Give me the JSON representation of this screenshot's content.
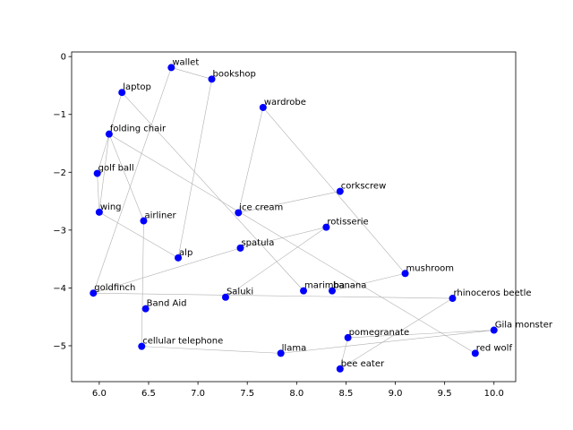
{
  "chart_data": {
    "type": "scatter",
    "title": "",
    "xlabel": "",
    "ylabel": "",
    "xlim": [
      5.72,
      10.22
    ],
    "ylim": [
      -5.62,
      0.08
    ],
    "xticks": [
      6.0,
      6.5,
      7.0,
      7.5,
      8.0,
      8.5,
      9.0,
      9.5,
      10.0
    ],
    "xtick_labels": [
      "6.0",
      "6.5",
      "7.0",
      "7.5",
      "8.0",
      "8.5",
      "9.0",
      "9.5",
      "10.0"
    ],
    "yticks": [
      0,
      -1,
      -2,
      -3,
      -4,
      -5
    ],
    "ytick_labels": [
      "0",
      "−1",
      "−2",
      "−3",
      "−4",
      "−5"
    ],
    "grid": false,
    "point_color": "#0000ff",
    "line_color": "#b0b0b0",
    "points": [
      {
        "label": "wallet",
        "x": 6.73,
        "y": -0.19
      },
      {
        "label": "bookshop",
        "x": 7.14,
        "y": -0.39
      },
      {
        "label": "laptop",
        "x": 6.23,
        "y": -0.62
      },
      {
        "label": "wardrobe",
        "x": 7.66,
        "y": -0.88
      },
      {
        "label": "folding chair",
        "x": 6.1,
        "y": -1.34
      },
      {
        "label": "golf ball",
        "x": 5.98,
        "y": -2.02
      },
      {
        "label": "corkscrew",
        "x": 8.44,
        "y": -2.33
      },
      {
        "label": "wing",
        "x": 6.0,
        "y": -2.69
      },
      {
        "label": "ice cream",
        "x": 7.41,
        "y": -2.7
      },
      {
        "label": "airliner",
        "x": 6.45,
        "y": -2.84
      },
      {
        "label": "rotisserie",
        "x": 8.3,
        "y": -2.95
      },
      {
        "label": "spatula",
        "x": 7.43,
        "y": -3.31
      },
      {
        "label": "alp",
        "x": 6.8,
        "y": -3.48
      },
      {
        "label": "mushroom",
        "x": 9.1,
        "y": -3.75
      },
      {
        "label": "goldfinch",
        "x": 5.94,
        "y": -4.09
      },
      {
        "label": "marimba",
        "x": 8.07,
        "y": -4.05
      },
      {
        "label": "banana",
        "x": 8.36,
        "y": -4.05
      },
      {
        "label": "Saluki",
        "x": 7.28,
        "y": -4.16
      },
      {
        "label": "rhinoceros beetle",
        "x": 9.58,
        "y": -4.18
      },
      {
        "label": "Band Aid",
        "x": 6.47,
        "y": -4.36
      },
      {
        "label": "Gila monster",
        "x": 10.0,
        "y": -4.73
      },
      {
        "label": "pomegranate",
        "x": 8.52,
        "y": -4.86
      },
      {
        "label": "cellular telephone",
        "x": 6.43,
        "y": -5.01
      },
      {
        "label": "llama",
        "x": 7.84,
        "y": -5.13
      },
      {
        "label": "red wolf",
        "x": 9.81,
        "y": -5.13
      },
      {
        "label": "bee eater",
        "x": 8.44,
        "y": -5.4
      }
    ],
    "edges": [
      [
        "wallet",
        "bookshop"
      ],
      [
        "wallet",
        "goldfinch"
      ],
      [
        "bookshop",
        "alp"
      ],
      [
        "laptop",
        "golf ball"
      ],
      [
        "laptop",
        "marimba"
      ],
      [
        "wardrobe",
        "ice cream"
      ],
      [
        "wardrobe",
        "mushroom"
      ],
      [
        "folding chair",
        "wing"
      ],
      [
        "folding chair",
        "airliner"
      ],
      [
        "folding chair",
        "red wolf"
      ],
      [
        "golf ball",
        "wing"
      ],
      [
        "corkscrew",
        "ice cream"
      ],
      [
        "wing",
        "alp"
      ],
      [
        "airliner",
        "cellular telephone"
      ],
      [
        "rotisserie",
        "spatula"
      ],
      [
        "rotisserie",
        "Saluki"
      ],
      [
        "spatula",
        "goldfinch"
      ],
      [
        "mushroom",
        "banana"
      ],
      [
        "goldfinch",
        "rhinoceros beetle"
      ],
      [
        "rhinoceros beetle",
        "bee eater"
      ],
      [
        "cellular telephone",
        "llama"
      ],
      [
        "llama",
        "Gila monster"
      ],
      [
        "Gila monster",
        "pomegranate"
      ],
      [
        "pomegranate",
        "bee eater"
      ]
    ]
  }
}
